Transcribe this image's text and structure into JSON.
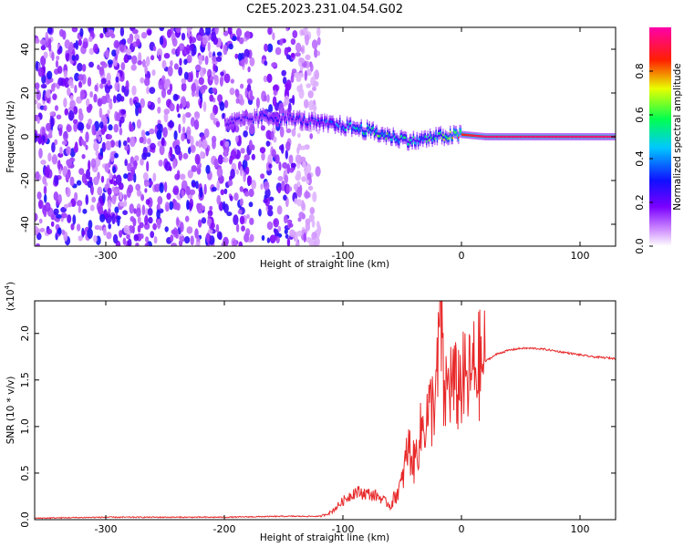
{
  "title": "C2E5.2023.231.04.54.G02",
  "colors": {
    "snr_line": "#e8292a",
    "axis": "#000000"
  },
  "chart_data": [
    {
      "type": "heatmap",
      "name": "spectrogram",
      "xlabel": "Height of straight line (km)",
      "ylabel": "Frequency (Hz)",
      "xlim": [
        -360,
        130
      ],
      "ylim": [
        -50,
        50
      ],
      "xticks": [
        -300,
        -200,
        -100,
        0,
        100
      ],
      "yticks": [
        -40,
        -20,
        0,
        20,
        40
      ],
      "colorbar": {
        "label": "Normalized spectral amplitude",
        "range": [
          0,
          1
        ],
        "ticks": [
          "0.0",
          "0.2",
          "0.4",
          "0.6",
          "0.8"
        ],
        "tick_values": [
          0,
          0.2,
          0.4,
          0.6,
          0.8
        ],
        "colormap": [
          "#ffffff",
          "#8a00ff",
          "#1010ff",
          "#00c8ff",
          "#00ff60",
          "#ffff00",
          "#ff2000",
          "#ff00aa"
        ]
      },
      "signal_track": [
        {
          "x": -200,
          "freq": 6,
          "amp": 0.25
        },
        {
          "x": -180,
          "freq": 8,
          "amp": 0.25
        },
        {
          "x": -160,
          "freq": 9,
          "amp": 0.3
        },
        {
          "x": -140,
          "freq": 8,
          "amp": 0.3
        },
        {
          "x": -120,
          "freq": 6,
          "amp": 0.35
        },
        {
          "x": -100,
          "freq": 5,
          "amp": 0.45
        },
        {
          "x": -80,
          "freq": 3,
          "amp": 0.6
        },
        {
          "x": -60,
          "freq": 0,
          "amp": 0.55
        },
        {
          "x": -40,
          "freq": -2,
          "amp": 0.5
        },
        {
          "x": -20,
          "freq": 0,
          "amp": 0.55
        },
        {
          "x": 0,
          "freq": 1,
          "amp": 0.85
        },
        {
          "x": 20,
          "freq": 0,
          "amp": 0.95
        },
        {
          "x": 60,
          "freq": 0,
          "amp": 0.95
        },
        {
          "x": 100,
          "freq": 0,
          "amp": 0.95
        },
        {
          "x": 130,
          "freq": 0,
          "amp": 0.95
        }
      ],
      "noise_region_x": [
        -360,
        -120
      ]
    },
    {
      "type": "line",
      "name": "snr",
      "xlabel": "Height of straight line (km)",
      "ylabel": "SNR (10 * v/v)",
      "ylabel_scale": "(x10",
      "ylabel_scale_exp": "4",
      "ylabel_scale_close": ")",
      "xlim": [
        -360,
        130
      ],
      "ylim": [
        0,
        2.35
      ],
      "xticks": [
        -300,
        -200,
        -100,
        0,
        100
      ],
      "yticks": [
        "0.0",
        "0.5",
        "1.0",
        "1.5",
        "2.0"
      ],
      "ytick_values": [
        0,
        0.5,
        1.0,
        1.5,
        2.0
      ],
      "series": [
        {
          "name": "SNR",
          "x": [
            -360,
            -300,
            -200,
            -150,
            -120,
            -110,
            -100,
            -90,
            -80,
            -70,
            -60,
            -50,
            -45,
            -40,
            -35,
            -30,
            -25,
            -20,
            -18,
            -15,
            -10,
            -5,
            0,
            5,
            10,
            15,
            20,
            30,
            40,
            50,
            60,
            70,
            80,
            90,
            100,
            110,
            120,
            130
          ],
          "y": [
            0.01,
            0.02,
            0.02,
            0.03,
            0.03,
            0.08,
            0.2,
            0.3,
            0.28,
            0.25,
            0.15,
            0.4,
            0.8,
            0.6,
            0.9,
            1.1,
            1.2,
            1.5,
            2.4,
            1.3,
            1.5,
            1.4,
            1.5,
            1.45,
            1.6,
            1.65,
            1.7,
            1.78,
            1.82,
            1.84,
            1.84,
            1.83,
            1.81,
            1.79,
            1.77,
            1.75,
            1.74,
            1.73
          ]
        }
      ]
    }
  ]
}
